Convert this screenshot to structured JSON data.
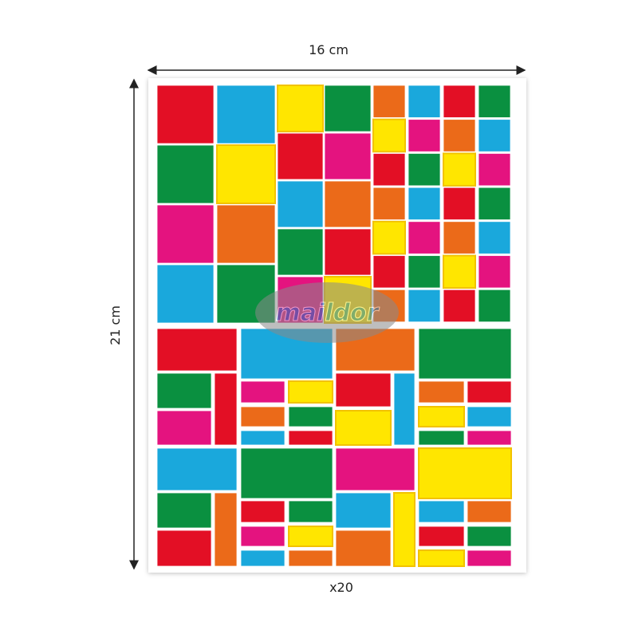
{
  "dimensions": {
    "width": "16 cm",
    "height": "21 cm"
  },
  "quantity": "x20",
  "watermark": "maildor"
}
